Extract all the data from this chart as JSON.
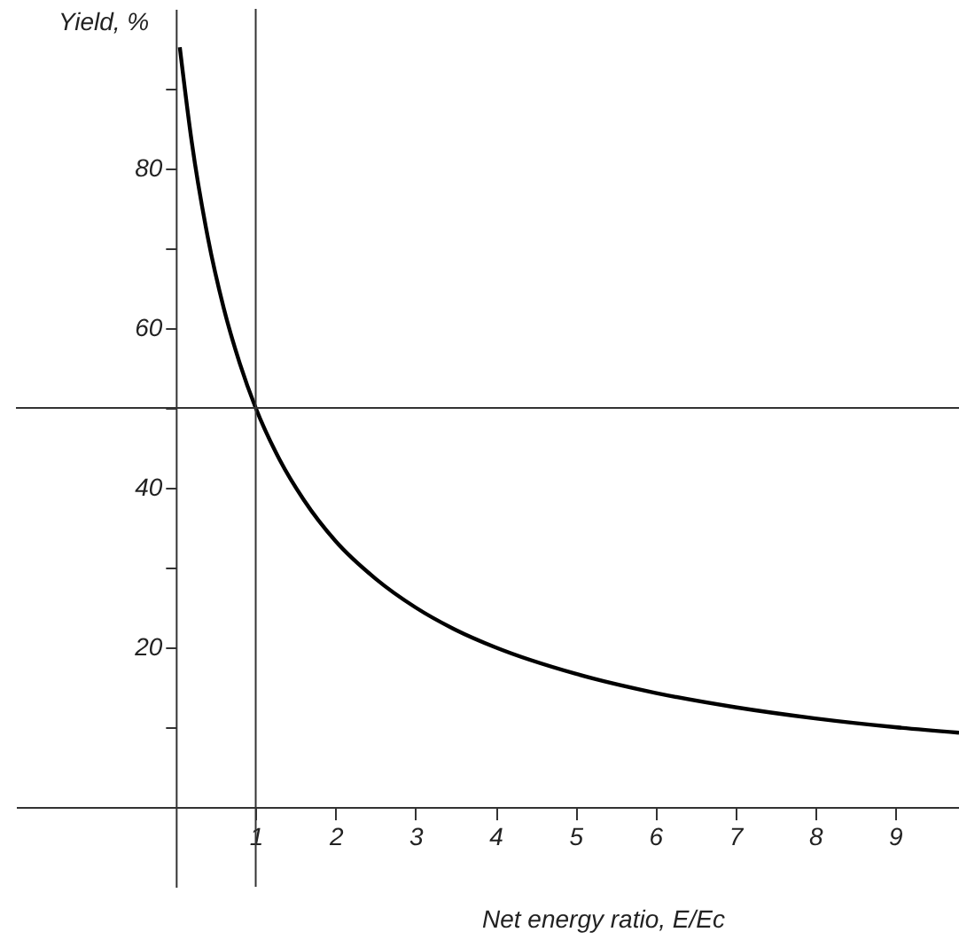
{
  "chart_data": {
    "type": "line",
    "xlabel": "Net energy ratio, E/Ec",
    "ylabel": "Yield, %",
    "x": [
      0.05,
      0.2,
      0.4,
      0.6,
      0.8,
      1,
      1.3,
      1.6,
      2,
      2.5,
      3,
      3.5,
      4,
      5,
      6,
      7,
      8,
      9,
      9.8
    ],
    "series": [
      {
        "color": "#000000",
        "values": [
          95.2,
          83.3,
          71.4,
          62.5,
          55.6,
          50,
          43.5,
          38.5,
          33.3,
          28.6,
          25,
          22.2,
          20,
          16.7,
          14.3,
          12.5,
          11.1,
          10,
          9.3
        ]
      }
    ],
    "xlim": [
      -2,
      9.8
    ],
    "ylim": [
      -10,
      100
    ],
    "xticks": [
      1,
      2,
      3,
      4,
      5,
      6,
      7,
      8,
      9
    ],
    "yticks": [
      {
        "value": 10,
        "label": null
      },
      20,
      {
        "value": 30,
        "label": null
      },
      40,
      {
        "value": 50,
        "label": null
      },
      60,
      {
        "value": 70,
        "label": null
      },
      80,
      {
        "value": 90,
        "label": null
      }
    ],
    "ref_lines": [
      {
        "axis": "x",
        "value": 1,
        "label": null,
        "color": "#333333"
      },
      {
        "axis": "y",
        "value": 50,
        "label": null,
        "color": "#333333"
      }
    ],
    "grid": false,
    "marker": "none",
    "line_style": "solid"
  }
}
